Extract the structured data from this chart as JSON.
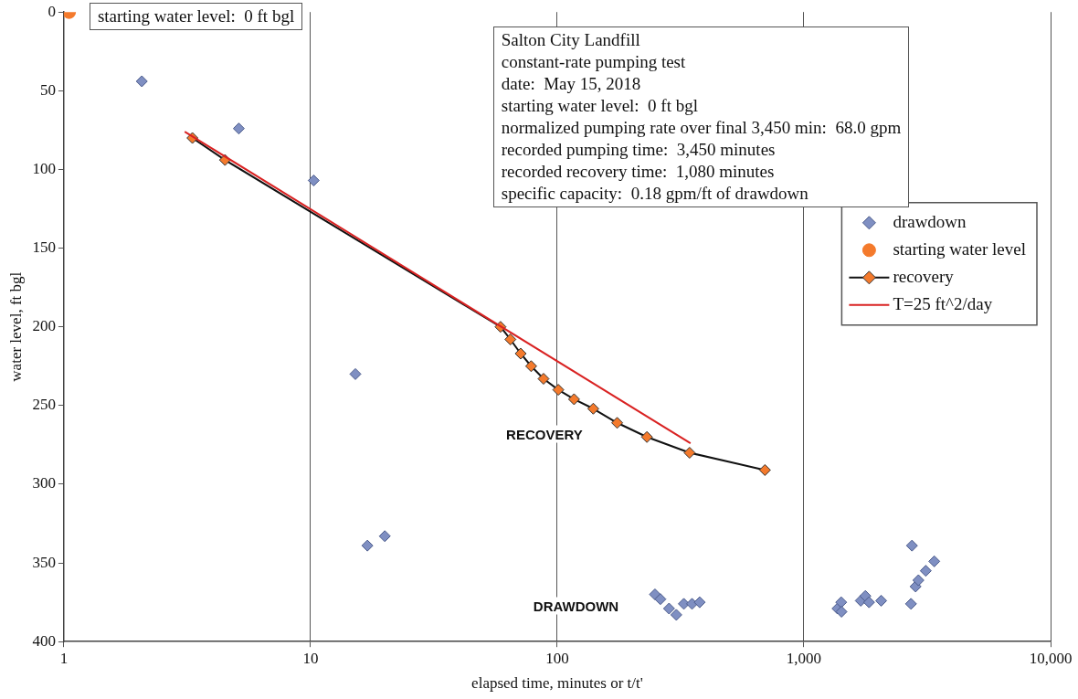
{
  "chart_data": {
    "type": "scatter",
    "xlabel": "elapsed time, minutes or t/t'",
    "ylabel": "water level, ft bgl",
    "log": "x",
    "xlim": [
      1,
      10000
    ],
    "xticks": [
      1,
      10,
      100,
      {
        "value": 1000,
        "label": "1,000"
      },
      {
        "value": 10000,
        "label": "10,000"
      }
    ],
    "ylim": [
      400,
      0
    ],
    "yticks": [
      0,
      50,
      100,
      150,
      200,
      250,
      300,
      350,
      400
    ],
    "grid": "x",
    "legend": "right",
    "line_style": "solid",
    "series": [
      {
        "name": "drawdown",
        "type": "scatter",
        "marker": "diamond",
        "color": "#7f8fc2",
        "x": [
          2.07,
          5.12,
          10.3,
          15.2,
          17.0,
          20.0,
          249,
          262,
          284,
          304,
          326,
          352,
          378,
          1368,
          1416,
          1420,
          1700,
          1775,
          1837,
          2057,
          2717,
          2742,
          2836,
          2912,
          3119,
          3376
        ],
        "values": [
          44,
          74,
          107,
          230,
          339,
          333,
          370,
          373,
          379,
          383,
          376,
          376,
          375,
          379,
          375,
          381,
          374,
          371,
          375,
          374,
          376,
          339,
          365,
          361,
          355,
          349
        ]
      },
      {
        "name": "starting water level",
        "type": "scatter",
        "marker": "circle",
        "color": "#f47a2c",
        "x": [
          1.05
        ],
        "values": [
          0
        ]
      },
      {
        "name": "recovery",
        "type": "line",
        "marker": "diamond",
        "color": "#f47a2c",
        "x": [
          3.32,
          4.5,
          58.9,
          64.6,
          71.1,
          78.4,
          88.0,
          101,
          117,
          140,
          175,
          231,
          344,
          695
        ],
        "values": [
          80,
          94,
          200,
          208,
          217,
          225,
          233,
          240,
          246,
          252,
          261,
          270,
          280,
          291
        ]
      },
      {
        "name": "T=25 ft^2/day",
        "type": "line",
        "marker": "none",
        "color": "#d92222",
        "x": [
          3.09,
          347
        ],
        "values": [
          76,
          274
        ]
      }
    ],
    "annotations": [
      "starting water level:  0 ft bgl",
      "Salton City Landfill\nconstant-rate pumping test\ndate:  May 15, 2018\nstarting water level:  0 ft bgl\nnormalized pumping rate over final 3,450 min:  68.0 gpm\nrecorded pumping time:  3,450 minutes\nrecorded recovery time:  1,080 minutes\nspecific capacity:  0.18 gpm/ft of drawdown",
      "RECOVERY",
      "DRAWDOWN"
    ]
  }
}
